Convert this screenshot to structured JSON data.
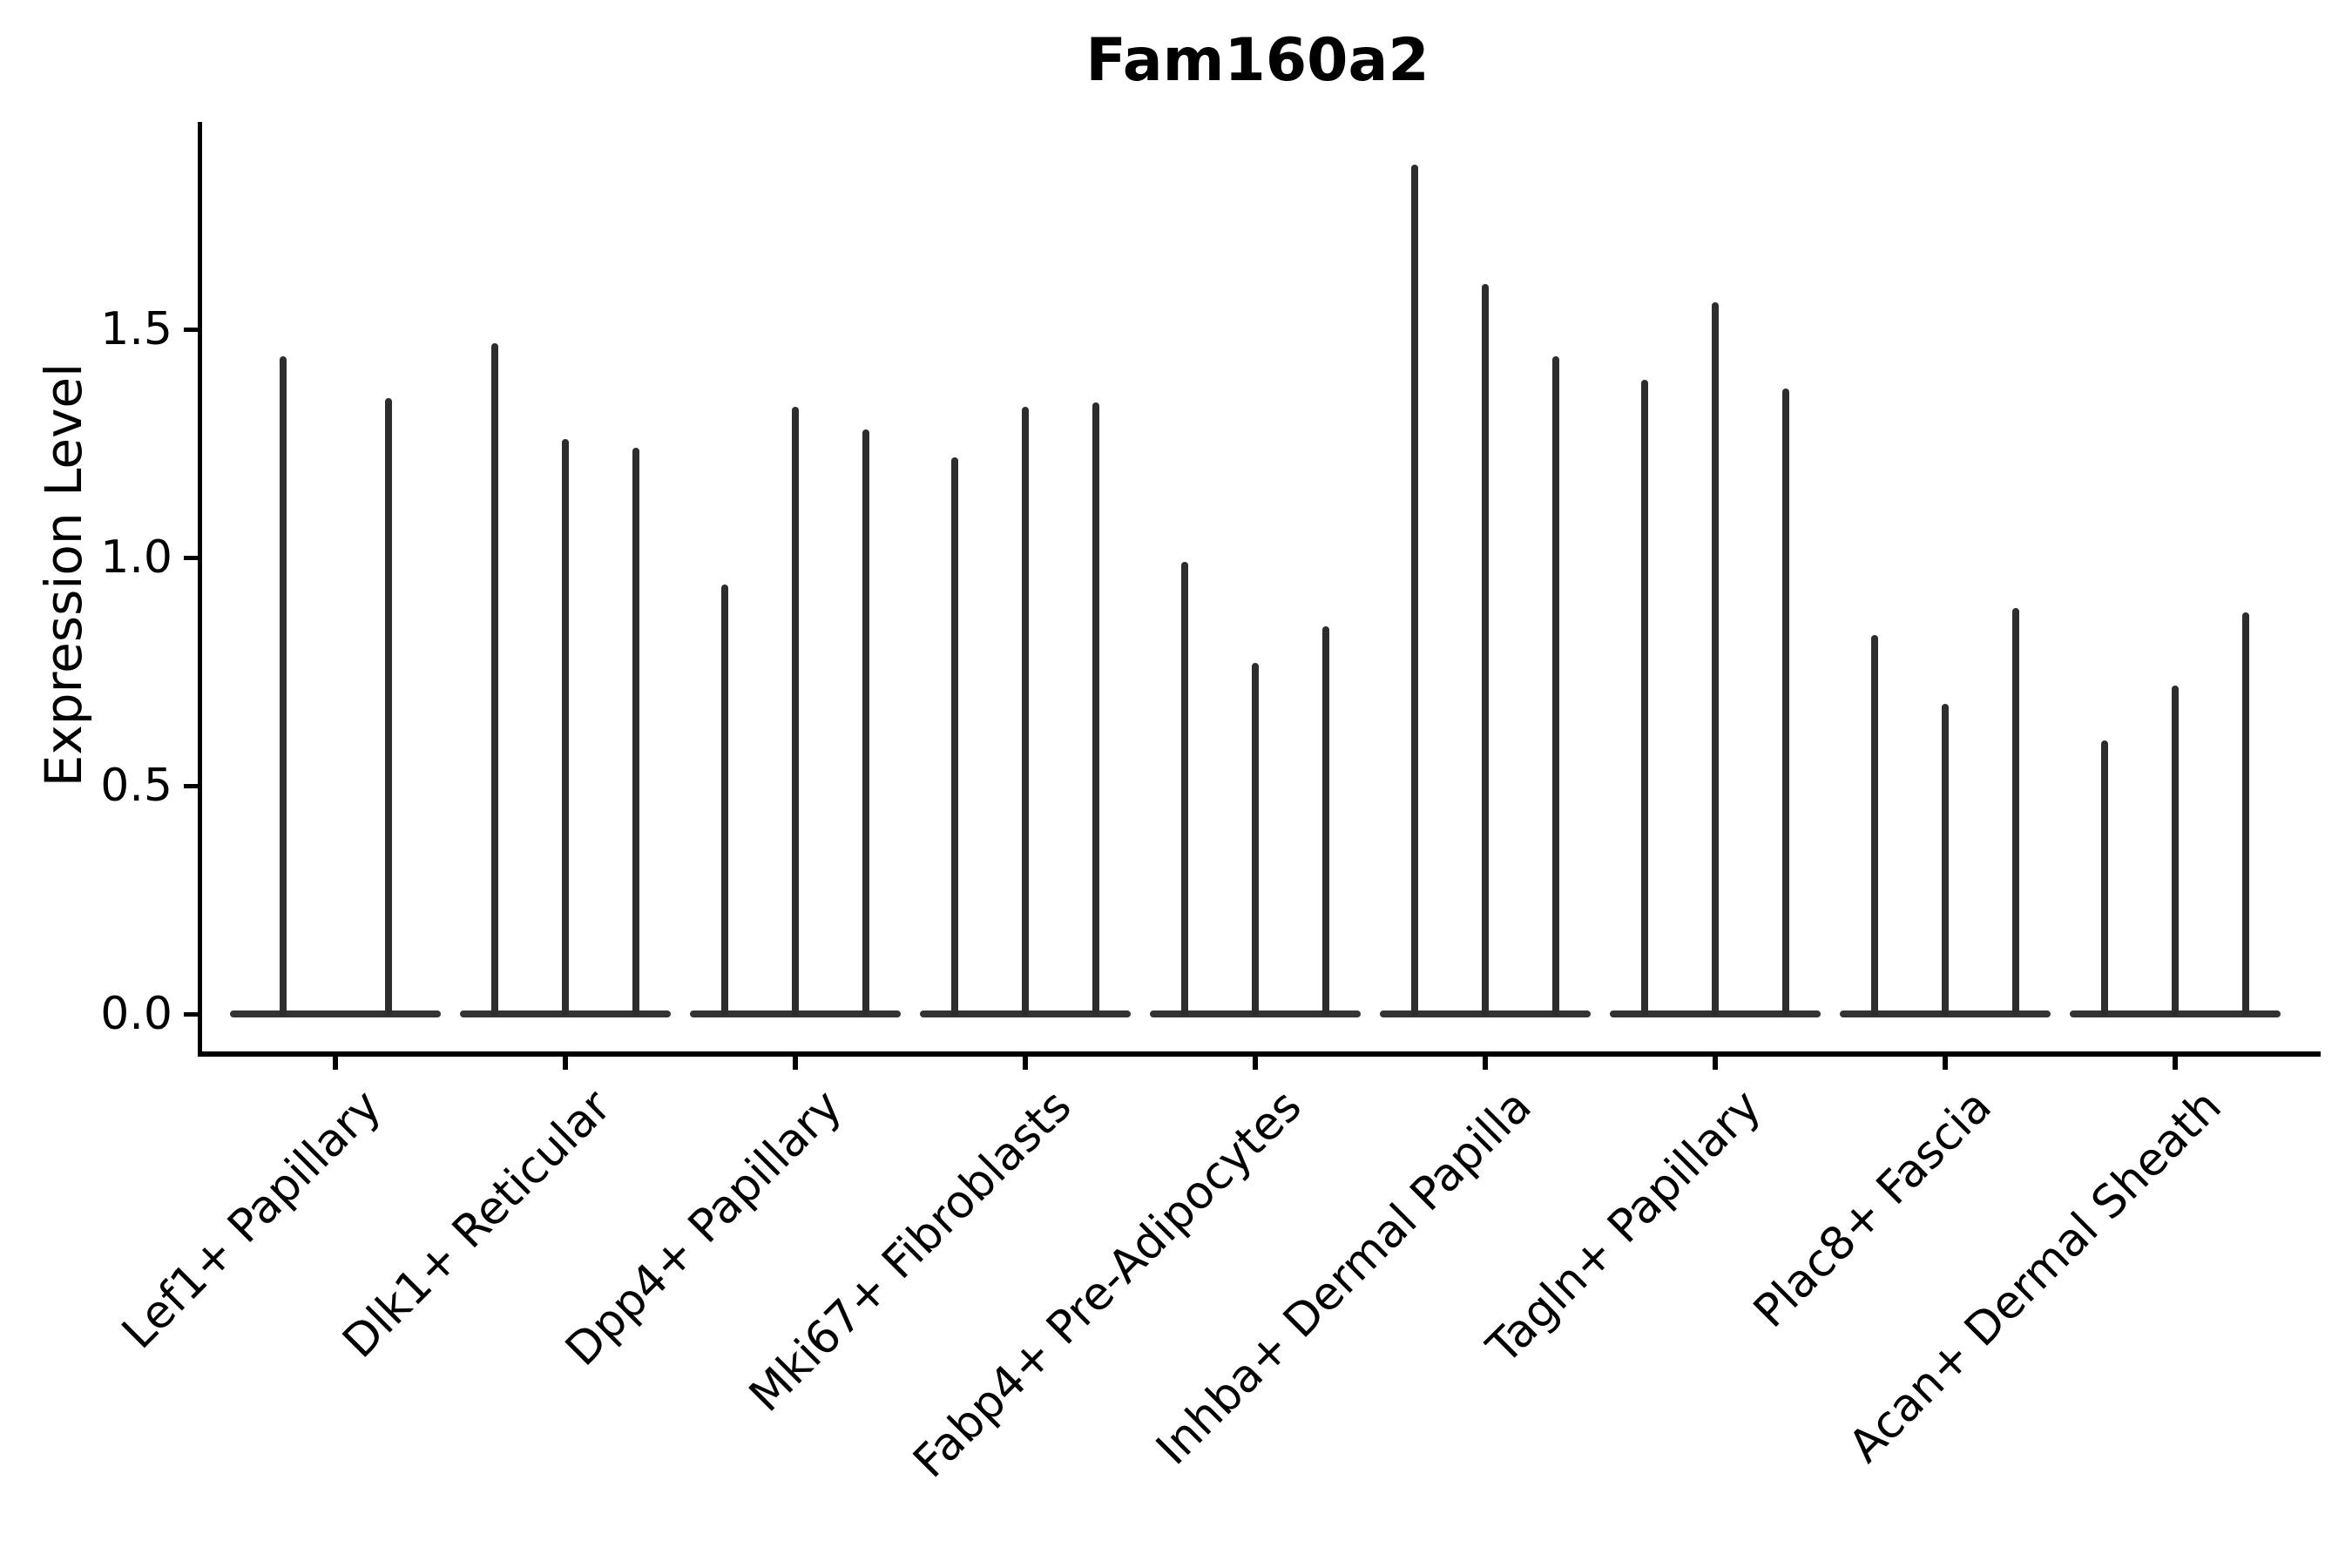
{
  "title": "Fam160a2",
  "y_axis": {
    "label": "Expression Level",
    "tick_labels": [
      "0.0",
      "0.5",
      "1.0",
      "1.5"
    ],
    "tick_values": [
      0.0,
      0.5,
      1.0,
      1.5
    ]
  },
  "x_axis": {
    "categories": [
      "Lef1+ Papillary",
      "Dlk1+ Reticular",
      "Dpp4+ Papillary",
      "Mki67+ Fibroblasts",
      "Fabp4+ Pre-Adipocytes",
      "Inhba+ Dermal Papilla",
      "Tagln+ Papillary",
      "Plac8+ Fascia",
      "Acan+ Dermal Sheath"
    ]
  },
  "chart_data": {
    "type": "violin",
    "title": "Fam160a2",
    "xlabel": "",
    "ylabel": "Expression Level",
    "ylim": [
      -0.09,
      1.95
    ],
    "yticks": [
      0.0,
      0.5,
      1.0,
      1.5
    ],
    "grid": false,
    "legend_position": "none",
    "violin_color": "#2d2d2d",
    "axis_color": "#000000",
    "categories": [
      "Lef1+ Papillary",
      "Dlk1+ Reticular",
      "Dpp4+ Papillary",
      "Mki67+ Fibroblasts",
      "Fabp4+ Pre-Adipocytes",
      "Inhba+ Dermal Papilla",
      "Tagln+ Papillary",
      "Plac8+ Fascia",
      "Acan+ Dermal Sheath"
    ],
    "series": [
      {
        "category": "Lef1+ Papillary",
        "violin_maxima": [
          1.44,
          1.35
        ]
      },
      {
        "category": "Dlk1+ Reticular",
        "violin_maxima": [
          1.47,
          1.26,
          1.24
        ]
      },
      {
        "category": "Dpp4+ Papillary",
        "violin_maxima": [
          0.94,
          1.33,
          1.28
        ]
      },
      {
        "category": "Mki67+ Fibroblasts",
        "violin_maxima": [
          1.22,
          1.33,
          1.34
        ]
      },
      {
        "category": "Fabp4+ Pre-Adipocytes",
        "violin_maxima": [
          0.99,
          0.77,
          0.85
        ]
      },
      {
        "category": "Inhba+ Dermal Papilla",
        "violin_maxima": [
          1.86,
          1.6,
          1.44
        ]
      },
      {
        "category": "Tagln+ Papillary",
        "violin_maxima": [
          1.39,
          1.56,
          1.37
        ]
      },
      {
        "category": "Plac8+ Fascia",
        "violin_maxima": [
          0.83,
          0.68,
          0.89
        ]
      },
      {
        "category": "Acan+ Dermal Sheath",
        "violin_maxima": [
          0.6,
          0.72,
          0.88
        ]
      }
    ],
    "note": "All expression distributions are concentrated at 0 (flat wide base) with thin spikes reaching the listed maxima"
  }
}
